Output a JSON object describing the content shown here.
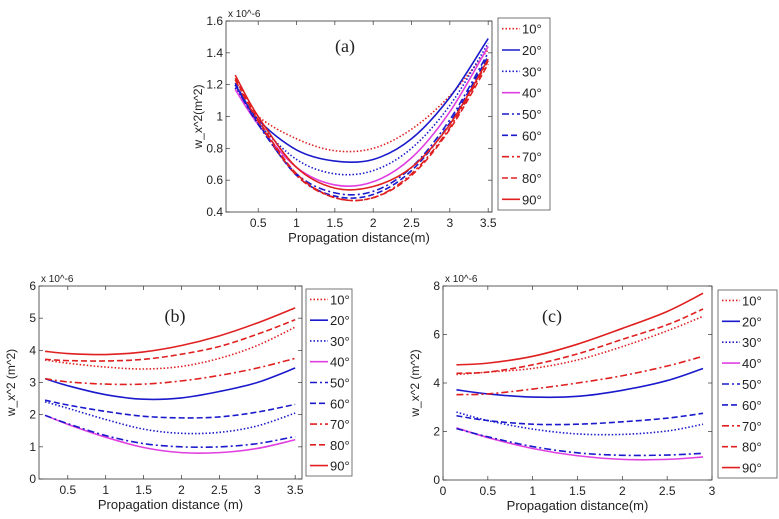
{
  "chart_data": [
    {
      "type": "line",
      "panel_label": "(a)",
      "xlabel": "Propagation distance(m)",
      "ylabel": "w_x^2(m^2)",
      "y_exponent": "x 10^-6",
      "xlim": [
        0.08,
        3.55
      ],
      "ylim": [
        0.4,
        1.6
      ],
      "xticks": [
        0.5,
        1,
        1.5,
        2,
        2.5,
        3,
        3.5
      ],
      "xtick_labels": [
        "0.5",
        "1",
        "1.5",
        "2",
        "2.5",
        "3",
        "3.5"
      ],
      "yticks": [
        0.4,
        0.6,
        0.8,
        1.0,
        1.2,
        1.4,
        1.6
      ],
      "ytick_labels": [
        "0.4",
        "0.6",
        "0.8",
        "1",
        "1.2",
        "1.4",
        "1.6"
      ],
      "legend_position": "outside-right",
      "x": [
        0.2,
        0.5,
        1,
        1.5,
        2,
        2.5,
        3,
        3.5
      ],
      "series": [
        {
          "name": "10°",
          "color": "#e02020",
          "style": "dotted",
          "values": [
            1.18,
            1.0,
            0.86,
            0.785,
            0.8,
            0.92,
            1.13,
            1.42
          ]
        },
        {
          "name": "20°",
          "color": "#1a1acc",
          "style": "solid",
          "values": [
            1.2,
            0.98,
            0.79,
            0.72,
            0.73,
            0.86,
            1.12,
            1.49
          ]
        },
        {
          "name": "30°",
          "color": "#1a1acc",
          "style": "dotted",
          "values": [
            1.18,
            0.96,
            0.73,
            0.64,
            0.66,
            0.8,
            1.07,
            1.46
          ]
        },
        {
          "name": "40°",
          "color": "#e040e0",
          "style": "solid",
          "values": [
            1.17,
            0.95,
            0.68,
            0.57,
            0.59,
            0.74,
            1.03,
            1.44
          ]
        },
        {
          "name": "50°",
          "color": "#1a1acc",
          "style": "dashdot",
          "values": [
            1.2,
            0.95,
            0.64,
            0.52,
            0.53,
            0.68,
            0.98,
            1.4
          ]
        },
        {
          "name": "60°",
          "color": "#1a1acc",
          "style": "dashed",
          "values": [
            1.21,
            0.96,
            0.63,
            0.5,
            0.51,
            0.66,
            0.96,
            1.38
          ]
        },
        {
          "name": "70°",
          "color": "#e02020",
          "style": "dashdot",
          "values": [
            1.23,
            0.97,
            0.63,
            0.49,
            0.49,
            0.64,
            0.93,
            1.35
          ]
        },
        {
          "name": "80°",
          "color": "#e02020",
          "style": "dashed",
          "values": [
            1.24,
            0.98,
            0.64,
            0.49,
            0.49,
            0.63,
            0.92,
            1.33
          ]
        },
        {
          "name": "90°",
          "color": "#e02020",
          "style": "solid",
          "values": [
            1.26,
            1.0,
            0.68,
            0.55,
            0.56,
            0.68,
            0.95,
            1.36
          ]
        }
      ]
    },
    {
      "type": "line",
      "panel_label": "(b)",
      "xlabel": "Propagation distance (m)",
      "ylabel": "w_x^2 (m^2)",
      "y_exponent": "x 10^-6",
      "xlim": [
        0.12,
        3.59
      ],
      "ylim": [
        0,
        6
      ],
      "xticks": [
        0.5,
        1,
        1.5,
        2,
        2.5,
        3,
        3.5
      ],
      "xtick_labels": [
        "0.5",
        "1",
        "1.5",
        "2",
        "2.5",
        "3",
        "3.5"
      ],
      "yticks": [
        0,
        1,
        2,
        3,
        4,
        5,
        6
      ],
      "ytick_labels": [
        "0",
        "1",
        "2",
        "3",
        "4",
        "5",
        "6"
      ],
      "legend_position": "outside-right",
      "x": [
        0.2,
        0.5,
        1,
        1.5,
        2,
        2.5,
        3,
        3.5
      ],
      "series": [
        {
          "name": "10°",
          "color": "#e02020",
          "style": "dotted",
          "values": [
            3.7,
            3.6,
            3.48,
            3.42,
            3.5,
            3.75,
            4.15,
            4.72
          ]
        },
        {
          "name": "20°",
          "color": "#1a1acc",
          "style": "solid",
          "values": [
            3.12,
            2.9,
            2.62,
            2.48,
            2.52,
            2.72,
            3.0,
            3.45
          ]
        },
        {
          "name": "30°",
          "color": "#1a1acc",
          "style": "dotted",
          "values": [
            2.4,
            2.2,
            1.85,
            1.55,
            1.42,
            1.45,
            1.65,
            2.05
          ]
        },
        {
          "name": "40°",
          "color": "#e040e0",
          "style": "solid",
          "values": [
            1.98,
            1.7,
            1.3,
            0.98,
            0.82,
            0.82,
            0.95,
            1.22
          ]
        },
        {
          "name": "50°",
          "color": "#1a1acc",
          "style": "dashdot",
          "values": [
            1.98,
            1.72,
            1.35,
            1.1,
            1.0,
            1.0,
            1.1,
            1.32
          ]
        },
        {
          "name": "60°",
          "color": "#1a1acc",
          "style": "dashed",
          "values": [
            2.45,
            2.3,
            2.1,
            1.95,
            1.9,
            1.93,
            2.08,
            2.32
          ]
        },
        {
          "name": "70°",
          "color": "#e02020",
          "style": "dashdot",
          "values": [
            3.12,
            3.02,
            2.95,
            2.95,
            3.05,
            3.22,
            3.45,
            3.75
          ]
        },
        {
          "name": "80°",
          "color": "#e02020",
          "style": "dashed",
          "values": [
            3.72,
            3.68,
            3.67,
            3.72,
            3.88,
            4.12,
            4.5,
            4.95
          ]
        },
        {
          "name": "90°",
          "color": "#e02020",
          "style": "solid",
          "values": [
            3.97,
            3.9,
            3.87,
            3.95,
            4.15,
            4.45,
            4.85,
            5.32
          ]
        }
      ]
    },
    {
      "type": "line",
      "panel_label": "(c)",
      "xlabel": "Propagation distance(m)",
      "ylabel": "w_x^2 (m^2)",
      "y_exponent": "x 10^-6",
      "xlim": [
        0,
        3
      ],
      "ylim": [
        0,
        8
      ],
      "xticks": [
        0,
        0.5,
        1,
        1.5,
        2,
        2.5,
        3
      ],
      "xtick_labels": [
        "0",
        "0.5",
        "1",
        "1.5",
        "2",
        "2.5",
        "3"
      ],
      "yticks": [
        0,
        2,
        4,
        6,
        8
      ],
      "ytick_labels": [
        "0",
        "2",
        "4",
        "6",
        "8"
      ],
      "legend_position": "outside-right",
      "x": [
        0.15,
        0.5,
        1,
        1.5,
        2,
        2.5,
        2.9
      ],
      "series": [
        {
          "name": "10°",
          "color": "#e02020",
          "style": "dotted",
          "values": [
            4.35,
            4.45,
            4.6,
            4.95,
            5.5,
            6.15,
            6.75
          ]
        },
        {
          "name": "20°",
          "color": "#1a1acc",
          "style": "solid",
          "values": [
            3.72,
            3.55,
            3.42,
            3.45,
            3.7,
            4.1,
            4.6
          ]
        },
        {
          "name": "30°",
          "color": "#1a1acc",
          "style": "dotted",
          "values": [
            2.8,
            2.45,
            2.1,
            1.9,
            1.88,
            2.02,
            2.3
          ]
        },
        {
          "name": "40°",
          "color": "#e040e0",
          "style": "solid",
          "values": [
            2.15,
            1.75,
            1.3,
            1.0,
            0.85,
            0.85,
            0.95
          ]
        },
        {
          "name": "50°",
          "color": "#1a1acc",
          "style": "dashdot",
          "values": [
            2.12,
            1.78,
            1.38,
            1.12,
            1.02,
            1.03,
            1.1
          ]
        },
        {
          "name": "60°",
          "color": "#1a1acc",
          "style": "dashed",
          "values": [
            2.65,
            2.45,
            2.3,
            2.3,
            2.4,
            2.55,
            2.75
          ]
        },
        {
          "name": "70°",
          "color": "#e02020",
          "style": "dashdot",
          "values": [
            3.52,
            3.55,
            3.75,
            4.0,
            4.3,
            4.7,
            5.1
          ]
        },
        {
          "name": "80°",
          "color": "#e02020",
          "style": "dashed",
          "values": [
            4.4,
            4.45,
            4.75,
            5.2,
            5.8,
            6.4,
            7.05
          ]
        },
        {
          "name": "90°",
          "color": "#e02020",
          "style": "solid",
          "values": [
            4.75,
            4.82,
            5.1,
            5.6,
            6.25,
            6.95,
            7.7
          ]
        }
      ]
    }
  ]
}
